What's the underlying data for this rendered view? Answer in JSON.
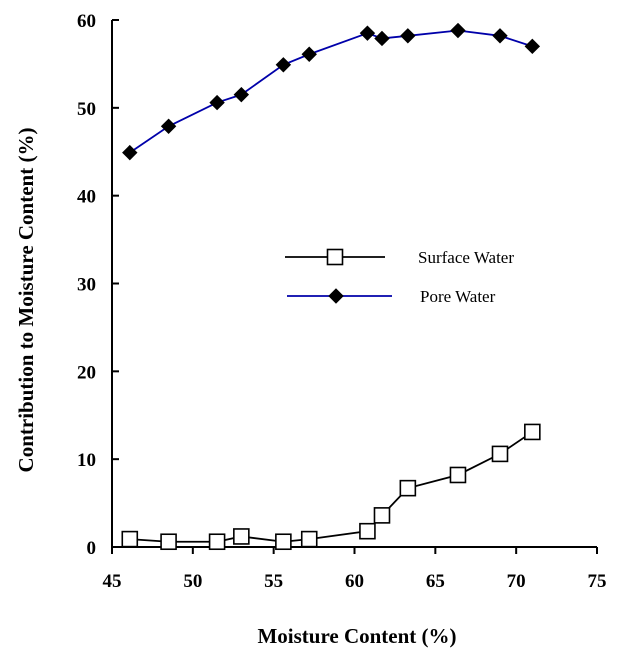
{
  "chart_data": {
    "type": "line",
    "title": "",
    "xlabel": "Moisture Content (%)",
    "ylabel": "Contribution to Moisture Content (%)",
    "xlim": [
      45,
      75
    ],
    "ylim": [
      0,
      60
    ],
    "xticks": [
      "45",
      "50",
      "55",
      "60",
      "65",
      "70",
      "75"
    ],
    "yticks": [
      "0",
      "10",
      "20",
      "30",
      "40",
      "50",
      "60"
    ],
    "grid": false,
    "legend_position": "center-right",
    "series": [
      {
        "name": "Surface Water",
        "marker": "open-square",
        "color": "#000000",
        "x": [
          46.1,
          48.5,
          51.5,
          53.0,
          55.6,
          57.2,
          60.8,
          61.7,
          63.3,
          66.4,
          69.0,
          71.0
        ],
        "y": [
          0.9,
          0.6,
          0.6,
          1.2,
          0.6,
          0.9,
          1.8,
          3.6,
          6.7,
          8.2,
          10.6,
          13.1
        ]
      },
      {
        "name": "Pore Water",
        "marker": "filled-diamond",
        "color": "#0000aa",
        "x": [
          46.1,
          48.5,
          51.5,
          53.0,
          55.6,
          57.2,
          60.8,
          61.7,
          63.3,
          66.4,
          69.0,
          71.0
        ],
        "y": [
          44.9,
          47.9,
          50.6,
          51.5,
          54.9,
          56.1,
          58.5,
          57.9,
          58.2,
          58.8,
          58.2,
          57.0
        ]
      }
    ]
  }
}
